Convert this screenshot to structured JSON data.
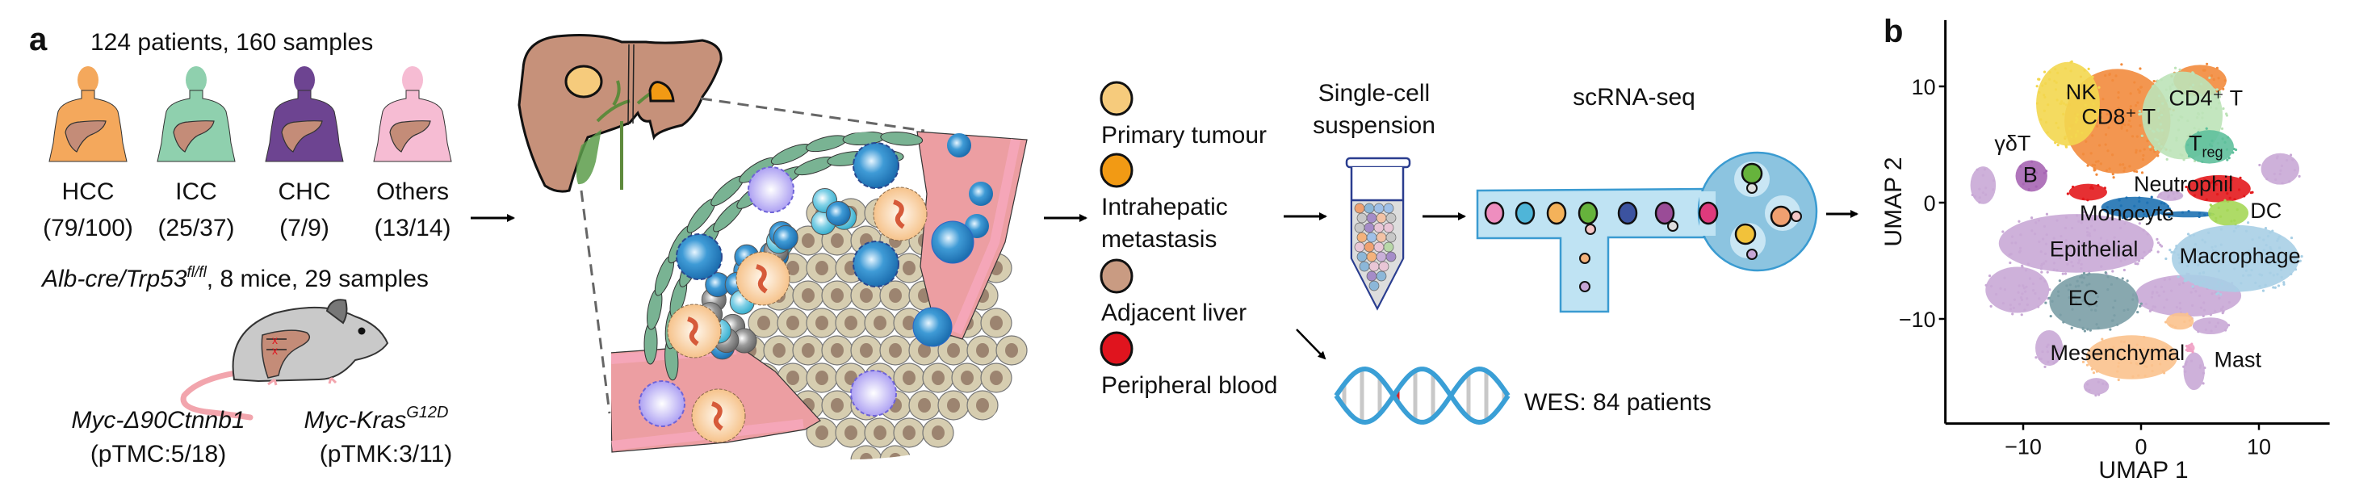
{
  "panel_a": {
    "label": "a",
    "cohort_title": "124 patients, 160 samples",
    "cohorts": [
      {
        "name": "HCC",
        "counts": "(79/100)",
        "color": "#f4a85c"
      },
      {
        "name": "ICC",
        "counts": "(25/37)",
        "color": "#8fd0ae"
      },
      {
        "name": "CHC",
        "counts": "(7/9)",
        "color": "#6d4491"
      },
      {
        "name": "Others",
        "counts": "(13/14)",
        "color": "#f6bcd3"
      }
    ],
    "mouse": {
      "genotype": "Alb-cre/Trp53",
      "genotype_sup": "fl/fl",
      "details": ", 8 mice, 29 samples",
      "models": [
        {
          "name": "Myc-Δ90Ctnnb1",
          "sup": "",
          "counts": "(pTMC:5/18)"
        },
        {
          "name": "Myc-Kras",
          "sup": "G12D",
          "counts": "(pTMK:3/11)"
        }
      ]
    },
    "sample_types": [
      {
        "lines": [
          "Primary tumour"
        ],
        "color": "#f6cb7c"
      },
      {
        "lines": [
          "Intrahepatic",
          "metastasis"
        ],
        "color": "#f29a14"
      },
      {
        "lines": [
          "Adjacent liver"
        ],
        "color": "#c99b82"
      },
      {
        "lines": [
          "Peripheral blood"
        ],
        "color": "#e0141e"
      }
    ],
    "suspension_label": [
      "Single-cell",
      "suspension"
    ],
    "scrna_label": "scRNA-seq",
    "wes_label": "WES: 84 patients"
  },
  "chart_data": {
    "panel_label": "b",
    "type": "scatter",
    "xlabel": "UMAP 1",
    "ylabel": "UMAP 2",
    "xlim": [
      -16.6,
      16
    ],
    "ylim": [
      -19,
      15.7
    ],
    "xticks": [
      -10,
      0,
      10
    ],
    "yticks": [
      -10,
      0,
      10
    ],
    "xtick_labels": [
      "−10",
      "0",
      "10"
    ],
    "ytick_labels": [
      "−10",
      "0",
      "10"
    ],
    "grid": false,
    "clusters": [
      {
        "name": "Epithelial",
        "color": "#c9a9d6",
        "label": {
          "x": -4.0,
          "y": -4.0
        },
        "regions": [
          [
            -5.5,
            -3.5,
            7.3,
            2.8
          ],
          [
            -13.4,
            1.5,
            1.2,
            1.8
          ],
          [
            -10.5,
            -7.5,
            3,
            2.2
          ],
          [
            4,
            -8,
            5,
            2
          ],
          [
            -7.8,
            -12.5,
            1.3,
            1.7
          ],
          [
            -3.8,
            -15.8,
            1.2,
            0.8
          ],
          [
            4.5,
            -14.5,
            1,
            1.8
          ],
          [
            5.9,
            -10.6,
            1.7,
            0.8
          ],
          [
            11.8,
            2.9,
            1.8,
            1.5
          ],
          [
            2.5,
            0.6,
            1.2,
            0.5
          ]
        ]
      },
      {
        "name": "CD8⁺ T",
        "color": "#f28b3d",
        "label": {
          "x": -1.9,
          "y": 7.4
        },
        "regions": [
          [
            -2,
            7,
            5,
            5
          ],
          [
            5,
            10.5,
            2.5,
            1.5
          ]
        ]
      },
      {
        "name": "NK",
        "color": "#f3d74f",
        "label": {
          "x": -5.1,
          "y": 9.5
        },
        "regions": [
          [
            -6.2,
            8.5,
            3,
            4
          ]
        ]
      },
      {
        "name": "CD4⁺ T",
        "color": "#bde3b8",
        "label": {
          "x": 5.5,
          "y": 9.0
        },
        "regions": [
          [
            3.5,
            7.5,
            3.8,
            4.2
          ]
        ]
      },
      {
        "name": "Treg",
        "color": "#5fc09c",
        "label": {
          "x": 5.5,
          "y": 5.1
        },
        "regions": [
          [
            5.8,
            4.8,
            2.3,
            1.6
          ]
        ]
      },
      {
        "name": "γδT",
        "color": "#e08a4a",
        "label": {
          "x": -10.9,
          "y": 5.1
        },
        "regions": []
      },
      {
        "name": "B",
        "color": "#a766b4",
        "label": {
          "x": -9.4,
          "y": 2.4
        },
        "regions": [
          [
            -9.3,
            2.3,
            1.5,
            1.5
          ]
        ]
      },
      {
        "name": "Neutrophil",
        "color": "#e3191d",
        "label": {
          "x": 3.6,
          "y": 1.6
        },
        "regions": [
          [
            -4.5,
            0.9,
            1.8,
            0.8
          ],
          [
            6.6,
            1.2,
            3,
            1.3
          ]
        ]
      },
      {
        "name": "Monocyte",
        "color": "#1f72b3",
        "label": {
          "x": -1.2,
          "y": -0.9
        },
        "regions": [
          [
            -0.5,
            -0.4,
            3.2,
            1.0
          ],
          [
            4,
            -1.0,
            2.5,
            0.3
          ]
        ]
      },
      {
        "name": "DC",
        "color": "#a5d757",
        "label": {
          "x": 10.6,
          "y": -0.7
        },
        "regions": [
          [
            7.4,
            -0.9,
            1.9,
            1.2
          ]
        ]
      },
      {
        "name": "Macrophage",
        "color": "#a8cfe5",
        "label": {
          "x": 8.4,
          "y": -4.6
        },
        "regions": [
          [
            8,
            -4.8,
            6,
            3.2
          ]
        ]
      },
      {
        "name": "EC",
        "color": "#7b9ea6",
        "label": {
          "x": -4.9,
          "y": -8.2
        },
        "regions": [
          [
            -4,
            -8.5,
            4.2,
            2.7
          ]
        ]
      },
      {
        "name": "Mesenchymal",
        "color": "#fbc28d",
        "label": {
          "x": -2.0,
          "y": -12.9
        },
        "regions": [
          [
            -0.8,
            -13.3,
            4.3,
            2.1
          ],
          [
            3.3,
            -10.2,
            1.3,
            0.8
          ]
        ]
      },
      {
        "name": "Mast",
        "color": "#f0a0c4",
        "label": {
          "x": 8.2,
          "y": -13.5
        },
        "regions": [
          [
            4.2,
            -12.5,
            0.4,
            0.4
          ]
        ]
      }
    ]
  }
}
